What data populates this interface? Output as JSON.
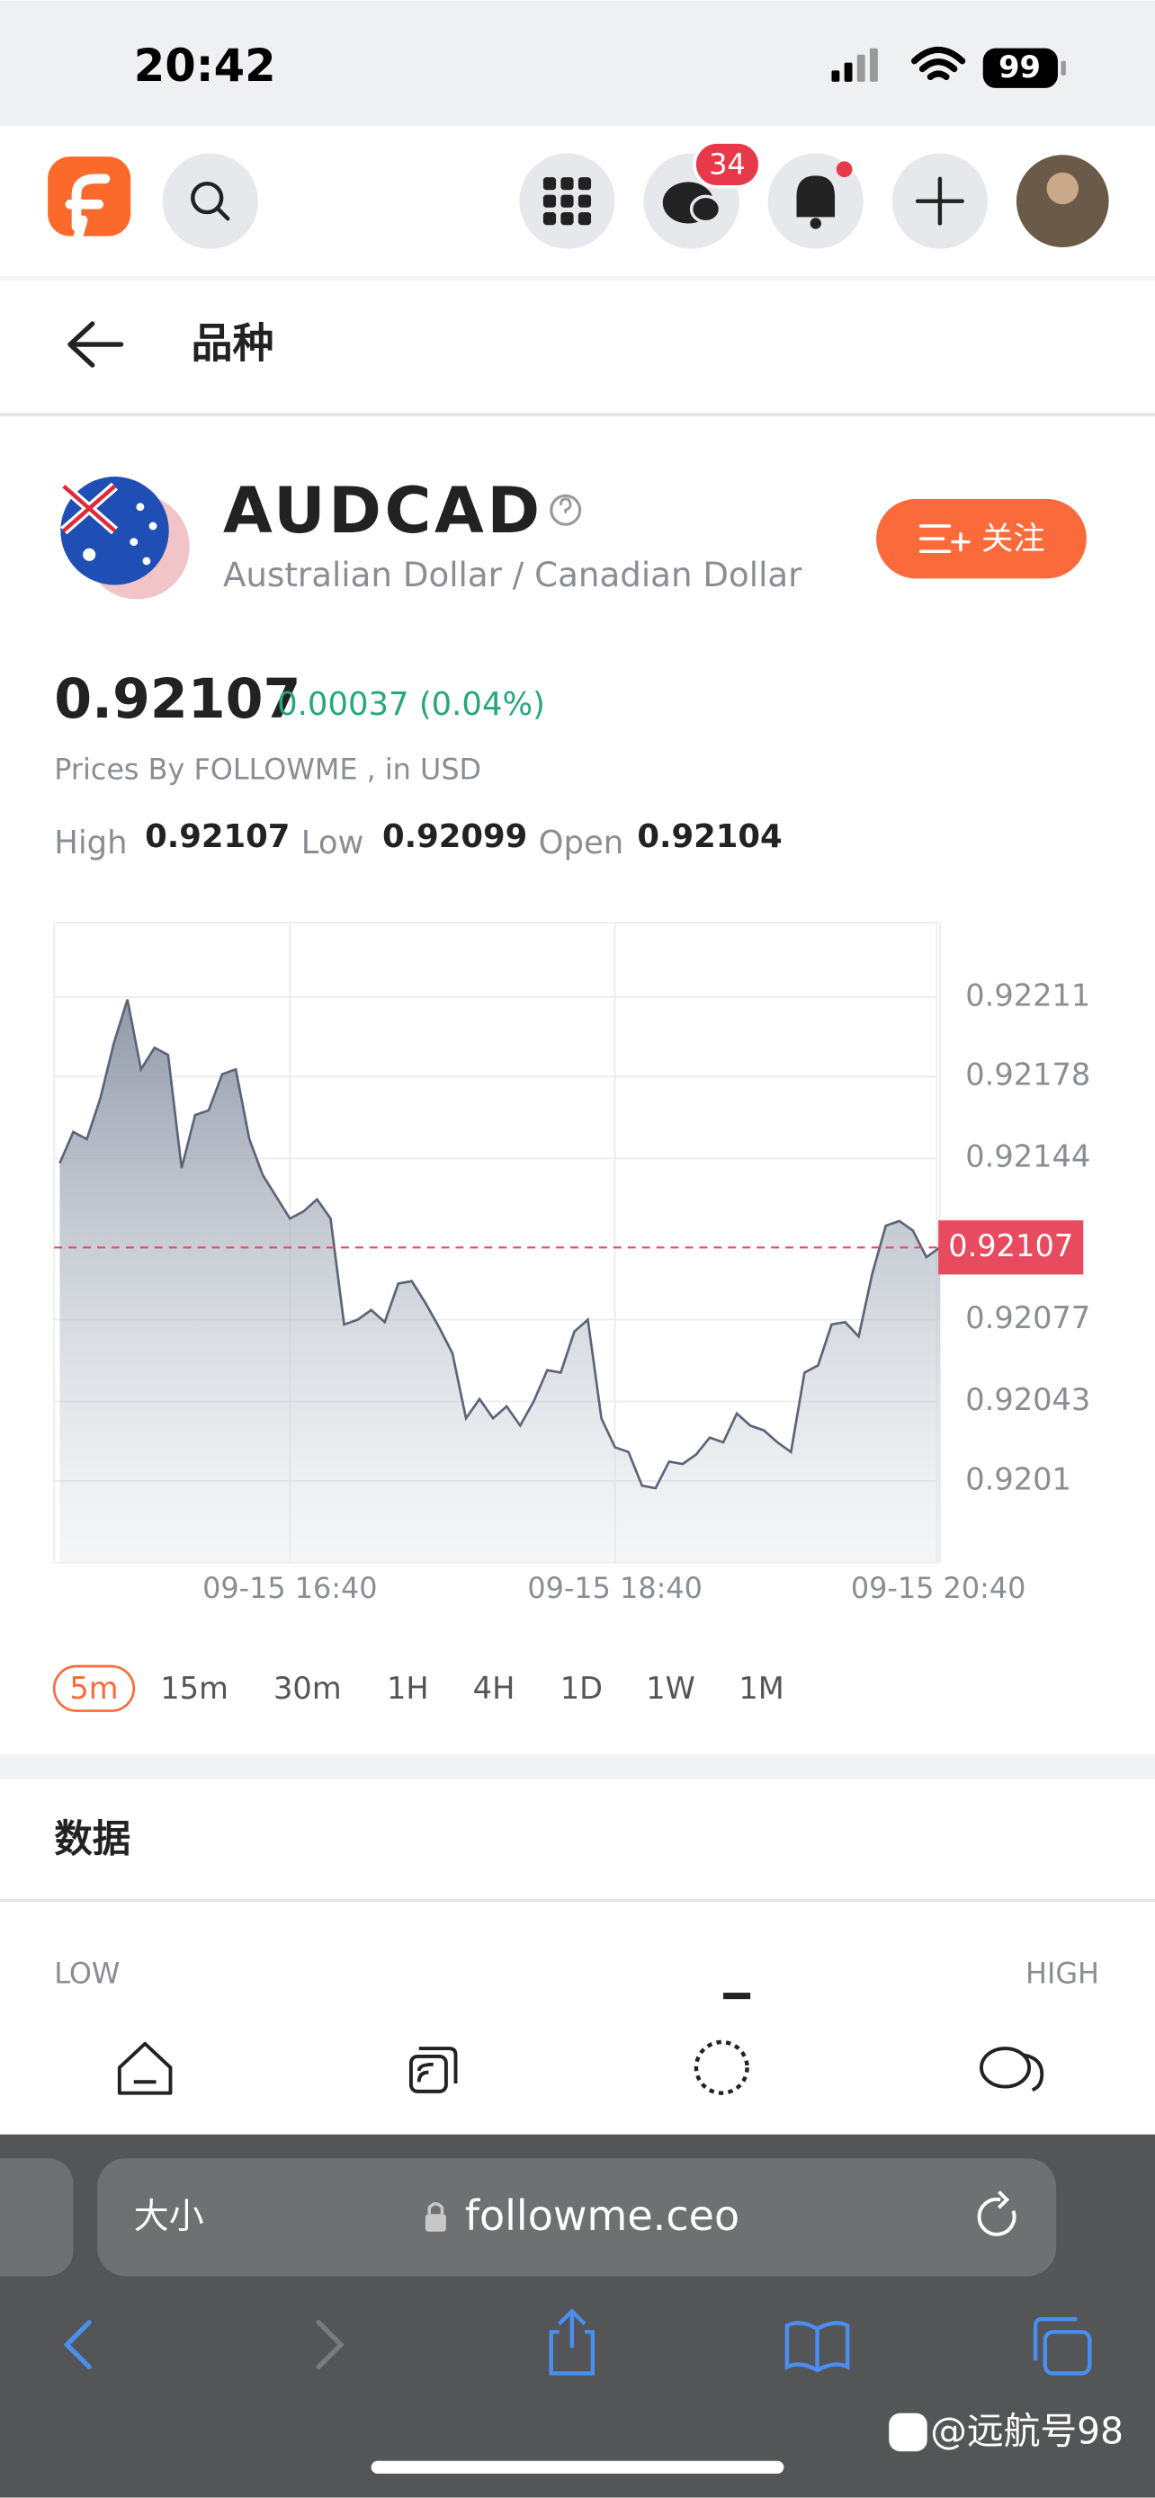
{
  "status_bar": {
    "time": "20:42",
    "battery": "99"
  },
  "nav": {
    "message_badge": "34"
  },
  "header": {
    "title": "品种"
  },
  "instrument": {
    "symbol": "AUDCAD",
    "name": "Australian Dollar / Canadian Dollar",
    "follow_button": "关注"
  },
  "quote": {
    "last": "0.92107",
    "change": "0.00037 (0.04%)",
    "source": "Prices By FOLLOWME , in USD",
    "high_label": "High",
    "high": "0.92107",
    "low_label": "Low",
    "low": "0.92099",
    "open_label": "Open",
    "open": "0.92104"
  },
  "chart": {
    "type": "line",
    "color": "#5b6478",
    "x": [
      null,
      null,
      null,
      null,
      null,
      null,
      null,
      null,
      null,
      null,
      null,
      null,
      null,
      null,
      null,
      null,
      null,
      "09-15 16:40",
      null,
      null,
      null,
      null,
      null,
      null,
      null,
      null,
      null,
      null,
      null,
      null,
      null,
      null,
      null,
      null,
      null,
      null,
      null,
      null,
      null,
      null,
      null,
      "09-15 18:40",
      null,
      null,
      null,
      null,
      null,
      null,
      null,
      null,
      null,
      null,
      null,
      null,
      null,
      null,
      null,
      null,
      null,
      null,
      null,
      null,
      null,
      null,
      null,
      "09-15 20:40"
    ],
    "values": [
      0.92142,
      0.92155,
      0.92152,
      0.92169,
      0.92192,
      0.9221,
      0.92181,
      0.9219,
      0.92187,
      0.9214,
      0.92162,
      0.92164,
      0.92179,
      0.92181,
      0.92152,
      0.92137,
      0.92128,
      0.92119,
      0.92122,
      0.92127,
      0.92119,
      0.92075,
      0.92077,
      0.92081,
      0.92076,
      0.92092,
      0.92093,
      0.92084,
      0.92074,
      0.92063,
      0.92036,
      0.92044,
      0.92036,
      0.92041,
      0.92033,
      0.92043,
      0.92056,
      0.92055,
      0.92072,
      0.92077,
      0.92036,
      0.92024,
      0.92022,
      0.92008,
      0.92007,
      0.92018,
      0.92017,
      0.92021,
      0.92028,
      0.92026,
      0.92038,
      0.92033,
      0.92031,
      0.92026,
      0.92022,
      0.92055,
      0.92058,
      0.92075,
      0.92076,
      0.9207,
      0.92096,
      0.92116,
      0.92118,
      0.92114,
      0.92103,
      0.92107
    ],
    "ylim": [
      0.91976,
      0.92242
    ],
    "yticks": [
      0.92211,
      0.92178,
      0.92144,
      0.92077,
      0.92043,
      0.9201
    ],
    "current_price": 0.92107,
    "current_price_color": "#e84a5f",
    "grid": true
  },
  "timeframes": {
    "items": [
      "5m",
      "15m",
      "30m",
      "1H",
      "4H",
      "1D",
      "1W",
      "1M"
    ],
    "active_index": 0
  },
  "data_section": {
    "title": "数据",
    "low_label": "LOW",
    "high_label": "HIGH"
  },
  "browser": {
    "text_size": "大小",
    "url": "followme.ceo"
  },
  "watermark": "@远航号98"
}
